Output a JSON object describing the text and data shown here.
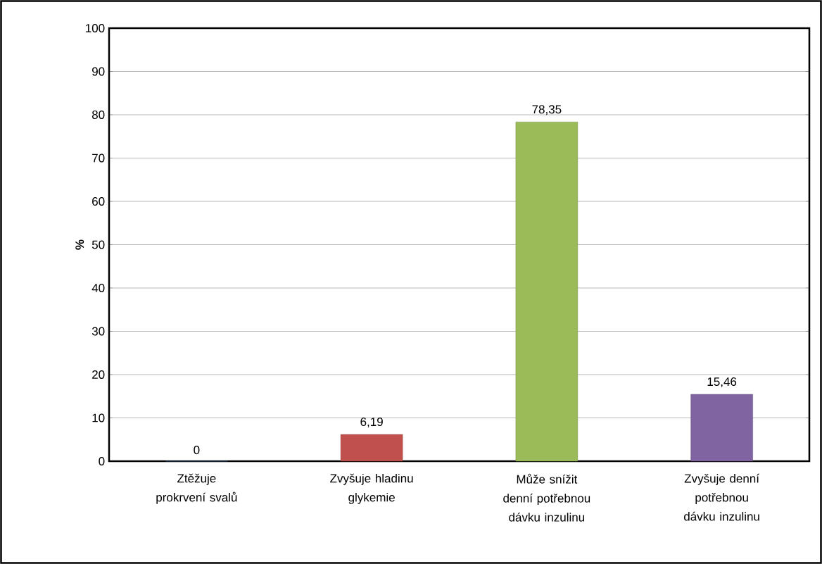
{
  "chart_data": {
    "type": "bar",
    "ylabel": "%",
    "categories": [
      "Ztěžuje prokrvení svalů",
      "Zvyšuje hladinu glykemie",
      "Může snížit denní potřebnou dávku inzulinu",
      "Zvyšuje denní potřebnou dávku inzulinu"
    ],
    "values": [
      0,
      6.19,
      78.35,
      15.46
    ],
    "value_labels": [
      "0",
      "6,19",
      "78,35",
      "15,46"
    ],
    "colors": [
      "#4f81bd",
      "#c0504d",
      "#9bbb59",
      "#8064a2"
    ],
    "ylim": [
      0,
      100
    ],
    "yticks": [
      0,
      10,
      20,
      30,
      40,
      50,
      60,
      70,
      80,
      90,
      100
    ],
    "grid": "y"
  }
}
